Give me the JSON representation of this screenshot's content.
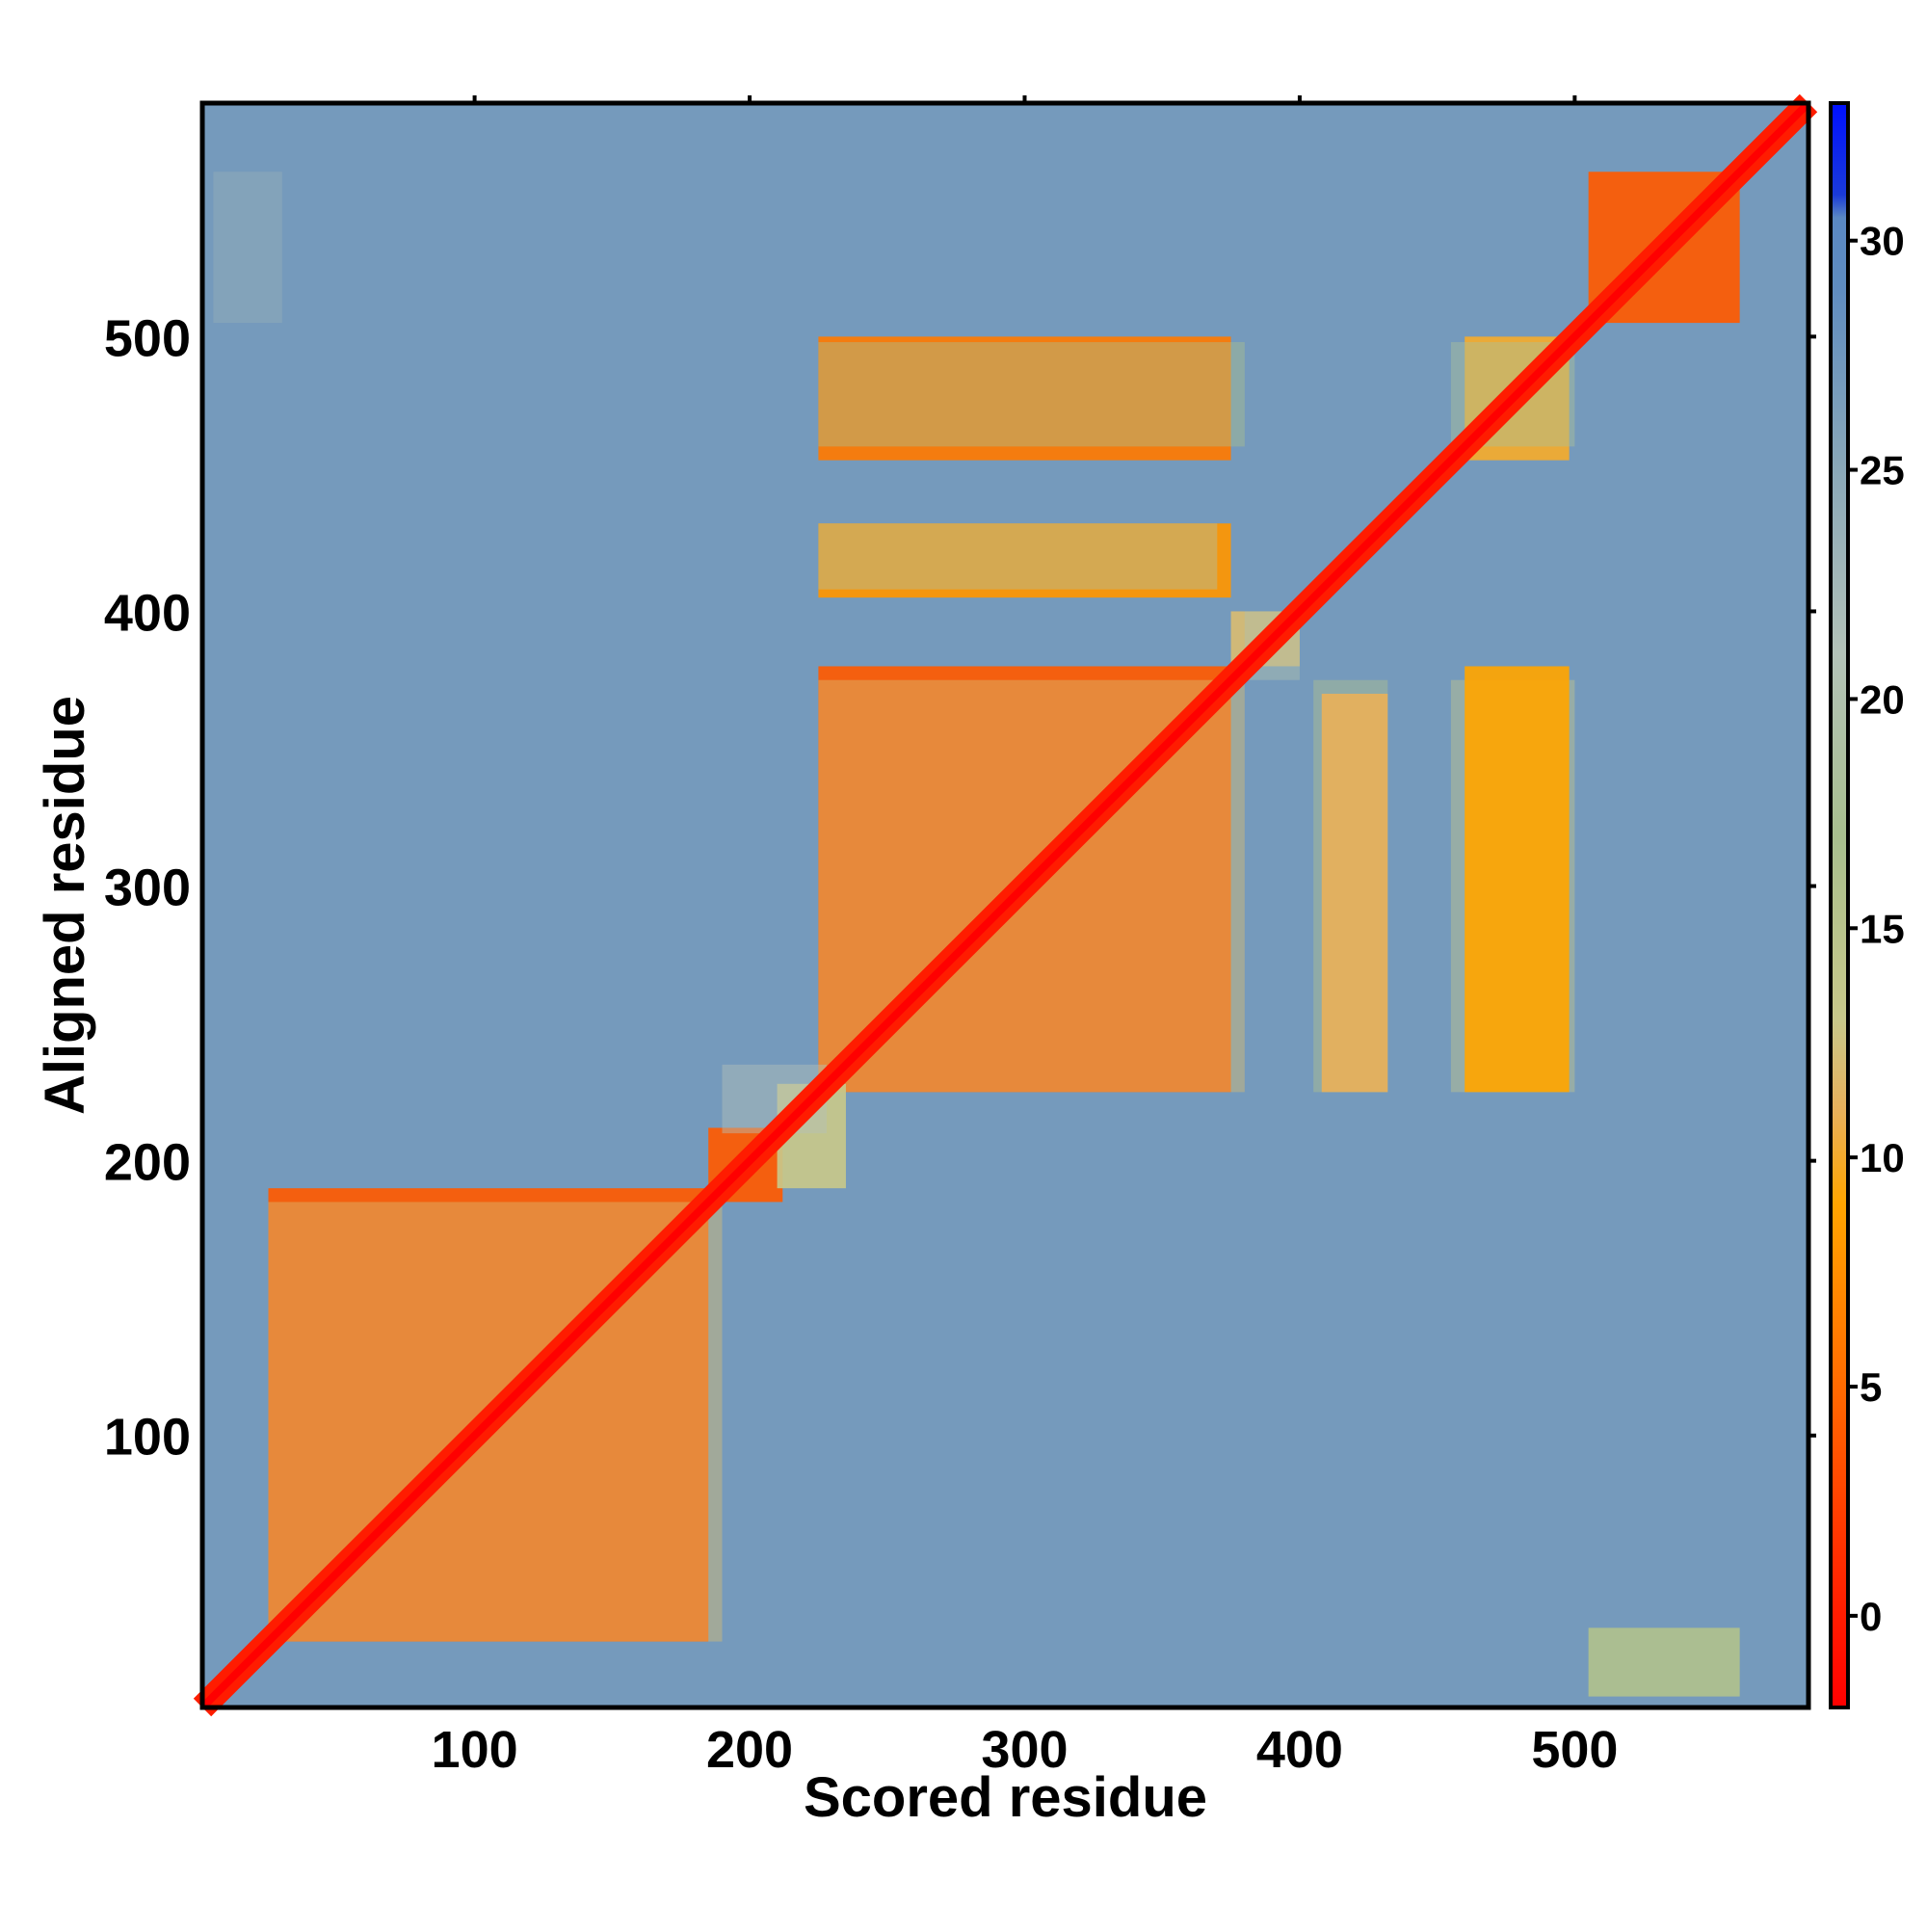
{
  "chart_data": {
    "type": "heatmap",
    "title": "",
    "xlabel": "Scored residue",
    "ylabel": "Aligned residue",
    "xlim": [
      1,
      585
    ],
    "ylim": [
      1,
      585
    ],
    "xticks": [
      100,
      200,
      300,
      400,
      500
    ],
    "yticks": [
      100,
      200,
      300,
      400,
      500
    ],
    "colorbar": {
      "ticks": [
        0,
        5,
        10,
        15,
        20,
        25,
        30
      ],
      "range": [
        -2,
        33
      ],
      "stops": [
        {
          "value": -2,
          "color": "#ff0000"
        },
        {
          "value": 1,
          "color": "#ff2a00"
        },
        {
          "value": 5,
          "color": "#ff6a00"
        },
        {
          "value": 9,
          "color": "#ffa500"
        },
        {
          "value": 11,
          "color": "#e8b05a"
        },
        {
          "value": 13,
          "color": "#c8c88a"
        },
        {
          "value": 17,
          "color": "#a8bf8e"
        },
        {
          "value": 21,
          "color": "#b3c2b8"
        },
        {
          "value": 25,
          "color": "#8aa8b8"
        },
        {
          "value": 29,
          "color": "#5f8cc0"
        },
        {
          "value": 30.5,
          "color": "#5a88c2"
        },
        {
          "value": 31,
          "color": "#1a3ad8"
        },
        {
          "value": 33,
          "color": "#0010ff"
        }
      ]
    },
    "background_value": 27,
    "diagonal_value": 0,
    "blocks": [
      {
        "x": [
          25,
          185
        ],
        "y": [
          25,
          190
        ],
        "value": 4
      },
      {
        "x": [
          225,
          375
        ],
        "y": [
          225,
          380
        ],
        "value": 4
      },
      {
        "x": [
          225,
          375
        ],
        "y": [
          455,
          500
        ],
        "value": 6
      },
      {
        "x": [
          225,
          375
        ],
        "y": [
          405,
          432
        ],
        "value": 8
      },
      {
        "x": [
          185,
          212
        ],
        "y": [
          185,
          212
        ],
        "value": 4
      },
      {
        "x": [
          505,
          560
        ],
        "y": [
          505,
          560
        ],
        "value": 4
      },
      {
        "x": [
          408,
          432
        ],
        "y": [
          225,
          370
        ],
        "value": 11
      },
      {
        "x": [
          460,
          498
        ],
        "y": [
          225,
          380
        ],
        "value": 9
      },
      {
        "x": [
          460,
          498
        ],
        "y": [
          455,
          500
        ],
        "value": 10
      },
      {
        "x": [
          505,
          560
        ],
        "y": [
          5,
          30
        ],
        "value": 16
      },
      {
        "x": [
          210,
          235
        ],
        "y": [
          190,
          228
        ],
        "value": 13
      },
      {
        "x": [
          375,
          400
        ],
        "y": [
          380,
          400
        ],
        "value": 12
      }
    ]
  }
}
